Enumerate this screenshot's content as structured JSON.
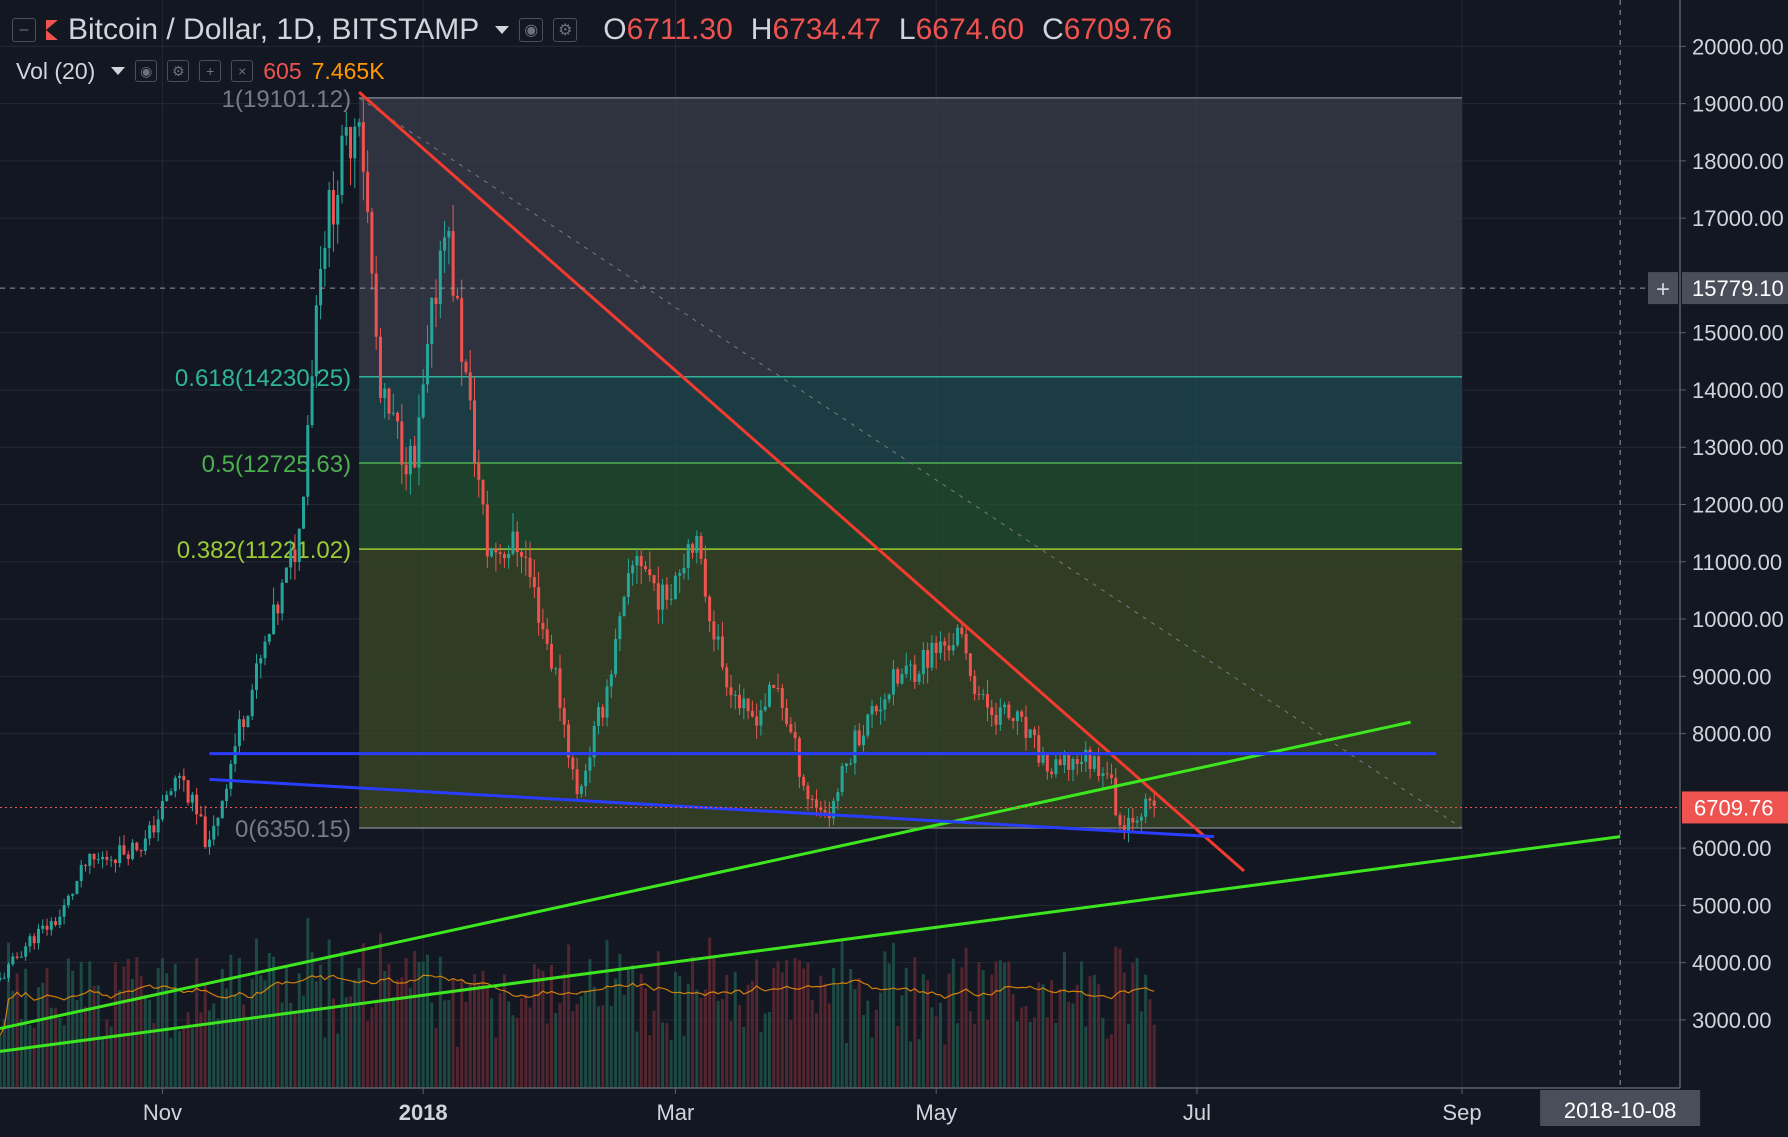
{
  "header": {
    "symbol": "Bitcoin / Dollar, 1D, BITSTAMP",
    "ohlc": [
      {
        "k": "O",
        "v": "6711.30"
      },
      {
        "k": "H",
        "v": "6734.47"
      },
      {
        "k": "L",
        "v": "6674.60"
      },
      {
        "k": "C",
        "v": "6709.76"
      }
    ],
    "volume_label": "Vol (20)",
    "volume_value": "605",
    "volume_ma": "7.465K"
  },
  "icons": [
    "collapse-icon",
    "symbol-flag-icon",
    "eye-icon",
    "gear-icon",
    "plus-icon",
    "close-icon"
  ],
  "colors": {
    "background": "#131722",
    "up": "#26a69a",
    "down": "#ef5350",
    "trendline_red": "#f23b2e",
    "trendline_green": "#3ee61f",
    "support_blue": "#2a3dff"
  },
  "chart_data": {
    "type": "candlestick",
    "price_axis": {
      "labels": [
        "20000.00",
        "19000.00",
        "18000.00",
        "17000.00",
        "15000.00",
        "14000.00",
        "13000.00",
        "12000.00",
        "11000.00",
        "10000.00",
        "9000.00",
        "8000.00",
        "6000.00",
        "5000.00",
        "4000.00",
        "3000.00"
      ],
      "ylim": [
        2300,
        20600
      ]
    },
    "time_axis": {
      "labels": [
        "Nov",
        "2018",
        "Mar",
        "May",
        "Jul",
        "Sep"
      ],
      "range": [
        "2017-09-24",
        "2018-10-22"
      ]
    },
    "crosshair": {
      "price": "15779.10",
      "date": "2018-10-08"
    },
    "last_price": "6709.76",
    "fibonacci": {
      "levels": [
        {
          "label": "1(19101.12)",
          "price": 19101.12
        },
        {
          "label": "0.618(14230.25)",
          "price": 14230.25
        },
        {
          "label": "0.5(12725.63)",
          "price": 12725.63
        },
        {
          "label": "0.382(11221.02)",
          "price": 11221.02
        },
        {
          "label": "0(6350.15)",
          "price": 6350.15
        }
      ],
      "start": "2017-12-17",
      "end": "2018-09-01"
    },
    "trendlines": [
      {
        "color": "red",
        "from": [
          "2017-12-17",
          19200
        ],
        "to": [
          "2018-07-12",
          5600
        ]
      },
      {
        "color": "green",
        "from": [
          "2017-09-24",
          2850
        ],
        "to": [
          "2018-08-20",
          8200
        ]
      },
      {
        "color": "green",
        "from": [
          "2017-09-24",
          2450
        ],
        "to": [
          "2018-10-08",
          6200
        ]
      },
      {
        "color": "blue",
        "from": [
          "2017-11-12",
          7650
        ],
        "to": [
          "2018-08-26",
          7650
        ]
      },
      {
        "color": "blue",
        "from": [
          "2017-11-12",
          7200
        ],
        "to": [
          "2018-07-05",
          6200
        ]
      }
    ],
    "closes_anchor": [
      [
        "2017-09-24",
        3700
      ],
      [
        "2017-10-01",
        4400
      ],
      [
        "2017-10-08",
        4800
      ],
      [
        "2017-10-14",
        5700
      ],
      [
        "2017-10-21",
        5900
      ],
      [
        "2017-10-28",
        6100
      ],
      [
        "2017-11-05",
        7300
      ],
      [
        "2017-11-12",
        6000
      ],
      [
        "2017-11-19",
        8100
      ],
      [
        "2017-11-26",
        9700
      ],
      [
        "2017-12-03",
        11500
      ],
      [
        "2017-12-08",
        16500
      ],
      [
        "2017-12-17",
        19100
      ],
      [
        "2017-12-22",
        13800
      ],
      [
        "2017-12-30",
        12600
      ],
      [
        "2018-01-06",
        17100
      ],
      [
        "2018-01-16",
        11200
      ],
      [
        "2018-01-24",
        11300
      ],
      [
        "2018-02-01",
        9000
      ],
      [
        "2018-02-06",
        6900
      ],
      [
        "2018-02-12",
        8500
      ],
      [
        "2018-02-20",
        11200
      ],
      [
        "2018-02-26",
        10300
      ],
      [
        "2018-03-05",
        11500
      ],
      [
        "2018-03-12",
        9200
      ],
      [
        "2018-03-18",
        8200
      ],
      [
        "2018-03-25",
        8800
      ],
      [
        "2018-04-01",
        6900
      ],
      [
        "2018-04-06",
        6600
      ],
      [
        "2018-04-12",
        7900
      ],
      [
        "2018-04-20",
        8800
      ],
      [
        "2018-04-28",
        9300
      ],
      [
        "2018-05-06",
        9700
      ],
      [
        "2018-05-12",
        8500
      ],
      [
        "2018-05-20",
        8200
      ],
      [
        "2018-05-28",
        7300
      ],
      [
        "2018-06-04",
        7600
      ],
      [
        "2018-06-10",
        7400
      ],
      [
        "2018-06-13",
        6400
      ],
      [
        "2018-06-18",
        6700
      ],
      [
        "2018-06-22",
        6710
      ]
    ]
  }
}
